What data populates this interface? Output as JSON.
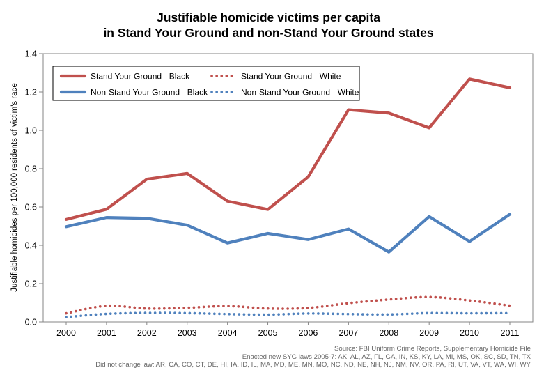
{
  "chart_data": {
    "type": "line",
    "title_lines": [
      "Justifiable homicide victims per capita",
      "in Stand Your Ground and non-Stand Your Ground states"
    ],
    "ylabel": "Justifiable homicides per 100,000 residents of victim's race",
    "xlabel": "",
    "x": [
      2000,
      2001,
      2002,
      2003,
      2004,
      2005,
      2006,
      2007,
      2008,
      2009,
      2010,
      2011
    ],
    "x_tick_labels": [
      "2000",
      "2001",
      "2002",
      "2003",
      "2004",
      "2005",
      "2006",
      "2007",
      "2008",
      "2009",
      "2010",
      "2011"
    ],
    "ylim": [
      0,
      1.4
    ],
    "y_ticks": [
      0,
      0.2,
      0.4,
      0.6,
      0.8,
      1.0,
      1.2,
      1.4
    ],
    "y_tick_labels": [
      "0.0",
      "0.2",
      "0.4",
      "0.6",
      "0.8",
      "1.0",
      "1.2",
      "1.4"
    ],
    "grid": false,
    "legend_position": "top-left",
    "series": [
      {
        "name": "Stand Your Ground - Black",
        "color": "#c0504d",
        "style": "solid",
        "values": [
          0.535,
          0.588,
          0.745,
          0.775,
          0.63,
          0.587,
          0.757,
          1.107,
          1.09,
          1.013,
          1.268,
          1.222
        ]
      },
      {
        "name": "Stand Your Ground - White",
        "color": "#c0504d",
        "style": "dotted",
        "values": [
          0.045,
          0.084,
          0.07,
          0.074,
          0.083,
          0.07,
          0.073,
          0.098,
          0.117,
          0.13,
          0.112,
          0.085
        ]
      },
      {
        "name": "Non-Stand Your Ground - Black",
        "color": "#4f81bd",
        "style": "solid",
        "values": [
          0.497,
          0.545,
          0.541,
          0.505,
          0.412,
          0.462,
          0.43,
          0.485,
          0.365,
          0.55,
          0.42,
          0.562
        ]
      },
      {
        "name": "Non-Stand Your Ground - White",
        "color": "#4f81bd",
        "style": "dotted",
        "values": [
          0.025,
          0.042,
          0.047,
          0.046,
          0.041,
          0.038,
          0.044,
          0.041,
          0.039,
          0.046,
          0.045,
          0.046
        ]
      }
    ],
    "notes": [
      "Source: FBI Uniform Crime Reports, Supplementary Homicide File",
      "Enacted new  SYG laws 2005-7: AK, AL, AZ, FL, GA,  IN, KS, KY, LA, MI, MS,  OK, SC, SD, TN, TX",
      "Did not  change law: AR, CA, CO, CT, DE, HI, IA, ID, IL, MA, MD, ME, MN, MO, NC, ND, NE, NH, NJ, NM, NV, OR, PA, RI, UT, VA, VT, WA, WI, WY"
    ]
  }
}
